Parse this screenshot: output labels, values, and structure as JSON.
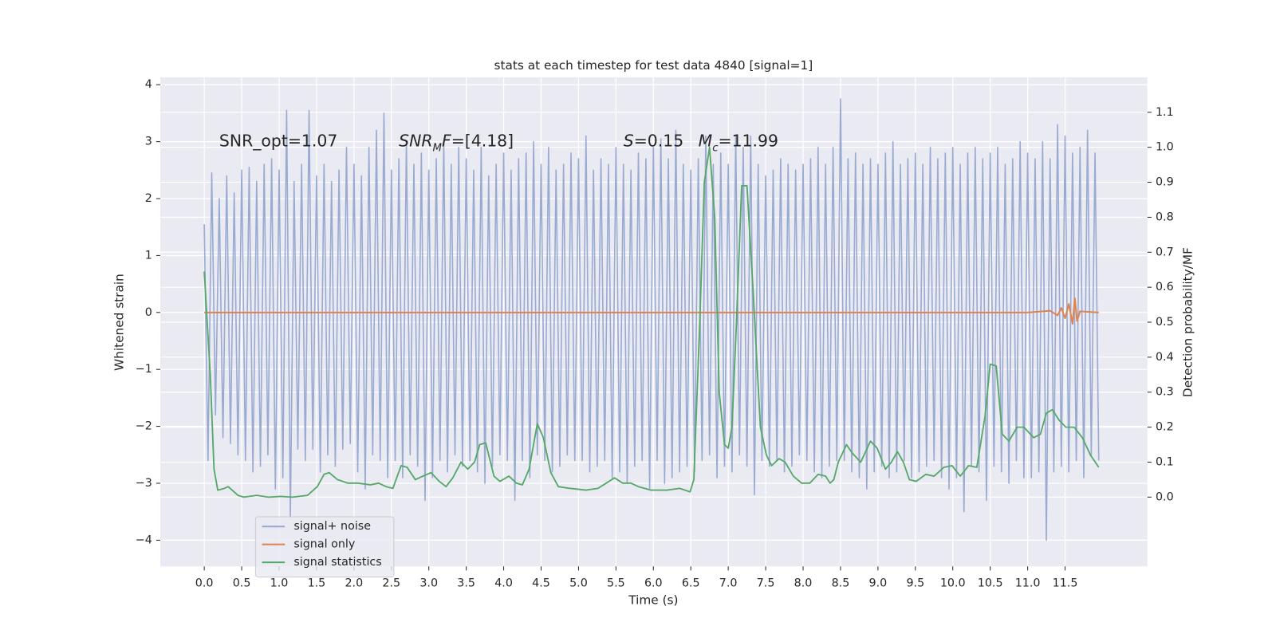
{
  "chart_data": {
    "type": "line",
    "title": "stats at each timestep for test data 4840 [signal=1]",
    "x_label": "Time (s)",
    "y_label": "Whitened strain",
    "y2_label": "Detection probability/MF",
    "grid": true,
    "legend": "lower left",
    "xlim": [
      -0.587,
      12.6
    ],
    "ylim": [
      -4.46,
      4.13
    ],
    "y2lim": [
      -0.198,
      1.2
    ],
    "xticks": [
      {
        "value": 0,
        "label": "0.0"
      },
      {
        "value": 0.5,
        "label": "0.5"
      },
      {
        "value": 1,
        "label": "1.0"
      },
      {
        "value": 1.5,
        "label": "1.5"
      },
      {
        "value": 2,
        "label": "2.0"
      },
      {
        "value": 2.5,
        "label": "2.5"
      },
      {
        "value": 3,
        "label": "3.0"
      },
      {
        "value": 3.5,
        "label": "3.5"
      },
      {
        "value": 4,
        "label": "4.0"
      },
      {
        "value": 4.5,
        "label": "4.5"
      },
      {
        "value": 5,
        "label": "5.0"
      },
      {
        "value": 5.5,
        "label": "5.5"
      },
      {
        "value": 6,
        "label": "6.0"
      },
      {
        "value": 6.5,
        "label": "6.5"
      },
      {
        "value": 7,
        "label": "7.0"
      },
      {
        "value": 7.5,
        "label": "7.5"
      },
      {
        "value": 8,
        "label": "8.0"
      },
      {
        "value": 8.5,
        "label": "8.5"
      },
      {
        "value": 9,
        "label": "9.0"
      },
      {
        "value": 9.5,
        "label": "9.5"
      },
      {
        "value": 10,
        "label": "10.0"
      },
      {
        "value": 10.5,
        "label": "10.5"
      },
      {
        "value": 11,
        "label": "11.0"
      },
      {
        "value": 11.5,
        "label": "11.5"
      }
    ],
    "yticks": [
      {
        "value": -4,
        "label": "−4"
      },
      {
        "value": -3,
        "label": "−3"
      },
      {
        "value": -2,
        "label": "−2"
      },
      {
        "value": -1,
        "label": "−1"
      },
      0,
      1,
      2,
      3,
      4
    ],
    "y2ticks": [
      {
        "value": 0,
        "label": "0.0"
      },
      {
        "value": 0.1,
        "label": "0.1"
      },
      {
        "value": 0.2,
        "label": "0.2"
      },
      {
        "value": 0.3,
        "label": "0.3"
      },
      {
        "value": 0.4,
        "label": "0.4"
      },
      {
        "value": 0.5,
        "label": "0.5"
      },
      {
        "value": 0.6,
        "label": "0.6"
      },
      {
        "value": 0.7,
        "label": "0.7"
      },
      {
        "value": 0.8,
        "label": "0.8"
      },
      {
        "value": 0.9,
        "label": "0.9"
      },
      {
        "value": 1.0,
        "label": "1.0"
      },
      {
        "value": 1.1,
        "label": "1.1"
      }
    ],
    "annotations": [
      {
        "parts": [
          {
            "text": "SNR_opt=1.07"
          }
        ]
      },
      {
        "parts": [
          {
            "text": "SNR",
            "italic": true
          },
          {
            "text": "M",
            "italic": true,
            "sub": true
          },
          {
            "text": "F",
            "italic": true
          },
          {
            "text": "=[4.18]"
          }
        ]
      },
      {
        "parts": [
          {
            "text": "S",
            "italic": true
          },
          {
            "text": "=0.15"
          }
        ]
      },
      {
        "parts": [
          {
            "text": "M",
            "italic": true
          },
          {
            "text": "c",
            "italic": true,
            "sub": true
          },
          {
            "text": "=11.99"
          }
        ]
      }
    ],
    "series": [
      {
        "name": "signal+ noise",
        "color": "#9aabd2",
        "width": 1.6,
        "x": [
          0,
          0.05,
          0.1,
          0.15,
          0.2,
          0.25,
          0.3,
          0.35,
          0.4,
          0.45,
          0.5,
          0.55,
          0.6,
          0.65,
          0.7,
          0.75,
          0.8,
          0.85,
          0.9,
          0.95,
          1,
          1.05,
          1.1,
          1.15,
          1.2,
          1.25,
          1.3,
          1.35,
          1.4,
          1.45,
          1.5,
          1.55,
          1.6,
          1.65,
          1.7,
          1.75,
          1.8,
          1.85,
          1.9,
          1.95,
          2,
          2.05,
          2.1,
          2.15,
          2.2,
          2.25,
          2.3,
          2.35,
          2.4,
          2.45,
          2.5,
          2.55,
          2.6,
          2.65,
          2.7,
          2.75,
          2.8,
          2.85,
          2.9,
          2.95,
          3,
          3.05,
          3.1,
          3.15,
          3.2,
          3.25,
          3.3,
          3.35,
          3.4,
          3.45,
          3.5,
          3.55,
          3.6,
          3.65,
          3.7,
          3.75,
          3.8,
          3.85,
          3.9,
          3.95,
          4,
          4.05,
          4.1,
          4.15,
          4.2,
          4.25,
          4.3,
          4.35,
          4.4,
          4.45,
          4.5,
          4.55,
          4.6,
          4.65,
          4.7,
          4.75,
          4.8,
          4.85,
          4.9,
          4.95,
          5,
          5.05,
          5.1,
          5.15,
          5.2,
          5.25,
          5.3,
          5.35,
          5.4,
          5.45,
          5.5,
          5.55,
          5.6,
          5.65,
          5.7,
          5.75,
          5.8,
          5.85,
          5.9,
          5.95,
          6,
          6.05,
          6.1,
          6.15,
          6.2,
          6.25,
          6.3,
          6.35,
          6.4,
          6.45,
          6.5,
          6.55,
          6.6,
          6.65,
          6.7,
          6.75,
          6.8,
          6.85,
          6.9,
          6.95,
          7,
          7.05,
          7.1,
          7.15,
          7.2,
          7.25,
          7.3,
          7.35,
          7.4,
          7.45,
          7.5,
          7.55,
          7.6,
          7.65,
          7.7,
          7.75,
          7.8,
          7.85,
          7.9,
          7.95,
          8,
          8.05,
          8.1,
          8.15,
          8.2,
          8.25,
          8.3,
          8.35,
          8.4,
          8.45,
          8.5,
          8.55,
          8.6,
          8.65,
          8.7,
          8.75,
          8.8,
          8.85,
          8.9,
          8.95,
          9,
          9.05,
          9.1,
          9.15,
          9.2,
          9.25,
          9.3,
          9.35,
          9.4,
          9.45,
          9.5,
          9.55,
          9.6,
          9.65,
          9.7,
          9.75,
          9.8,
          9.85,
          9.9,
          9.95,
          10,
          10.05,
          10.1,
          10.15,
          10.2,
          10.25,
          10.3,
          10.35,
          10.4,
          10.45,
          10.5,
          10.55,
          10.6,
          10.65,
          10.7,
          10.75,
          10.8,
          10.85,
          10.9,
          10.95,
          11,
          11.05,
          11.1,
          11.15,
          11.2,
          11.25,
          11.3,
          11.35,
          11.4,
          11.45,
          11.5,
          11.55,
          11.6,
          11.65,
          11.7,
          11.75,
          11.8,
          11.85,
          11.9,
          11.95
        ],
        "values": [
          1.55,
          -2.6,
          2.45,
          -1.8,
          2.0,
          -2.2,
          2.4,
          -2.3,
          2.1,
          -2.5,
          2.5,
          -2.6,
          2.55,
          -2.8,
          2.3,
          -2.7,
          2.6,
          -2.5,
          2.7,
          -3.1,
          2.5,
          -2.9,
          3.55,
          -3.6,
          2.3,
          -2.4,
          2.6,
          -2.6,
          3.55,
          -2.4,
          2.4,
          -2.8,
          2.6,
          -2.5,
          2.3,
          -2.7,
          2.5,
          -2.4,
          2.9,
          -2.3,
          2.6,
          -2.8,
          2.4,
          -3.1,
          2.9,
          -2.5,
          3.2,
          -2.6,
          3.5,
          -2.9,
          2.5,
          -2.6,
          2.7,
          -2.9,
          3.0,
          -2.5,
          2.6,
          -2.7,
          2.8,
          -3.3,
          2.5,
          -2.9,
          2.7,
          -2.6,
          3.0,
          -2.8,
          2.6,
          -2.5,
          2.9,
          -2.7,
          2.7,
          -2.6,
          2.5,
          -2.8,
          2.9,
          -3.0,
          2.4,
          -2.7,
          2.6,
          -2.5,
          2.8,
          -2.6,
          2.5,
          -3.3,
          2.7,
          -2.6,
          2.8,
          -2.9,
          3.0,
          -2.5,
          2.6,
          -2.6,
          2.9,
          -2.8,
          2.5,
          -2.7,
          2.6,
          -2.5,
          2.8,
          -2.6,
          2.7,
          -2.6,
          3.1,
          -2.8,
          2.5,
          -2.7,
          2.7,
          -2.6,
          2.6,
          -2.9,
          2.9,
          -2.8,
          2.6,
          -3.0,
          2.5,
          -2.7,
          2.8,
          -2.6,
          2.7,
          -3.1,
          2.9,
          -2.6,
          3.05,
          -3.0,
          2.7,
          -2.9,
          3.2,
          -2.8,
          2.6,
          -2.7,
          2.5,
          -2.8,
          2.7,
          -2.6,
          3.1,
          -2.5,
          2.6,
          -2.9,
          2.8,
          -2.7,
          2.6,
          -2.8,
          3.1,
          -2.5,
          2.9,
          -2.7,
          3.1,
          -3.2,
          2.6,
          -2.6,
          2.4,
          -2.7,
          2.5,
          -2.6,
          2.7,
          -2.8,
          2.6,
          -2.7,
          2.5,
          -2.5,
          2.6,
          -2.6,
          2.7,
          -2.8,
          2.9,
          -2.9,
          2.6,
          -2.7,
          2.9,
          -2.6,
          3.75,
          -2.6,
          2.7,
          -2.8,
          2.8,
          -2.9,
          2.6,
          -3.1,
          2.7,
          -2.8,
          2.6,
          -2.7,
          2.8,
          -2.9,
          3.0,
          -2.8,
          2.6,
          -2.6,
          2.7,
          -2.9,
          2.8,
          -2.8,
          2.6,
          -2.7,
          2.9,
          -2.6,
          2.7,
          -2.9,
          2.8,
          -3.1,
          2.9,
          -2.9,
          2.6,
          -3.5,
          2.8,
          -2.7,
          2.9,
          -2.8,
          2.7,
          -3.3,
          2.8,
          -2.7,
          2.9,
          -2.8,
          2.6,
          -3.0,
          2.7,
          -2.6,
          3.0,
          -2.9,
          2.8,
          -2.9,
          2.7,
          -2.8,
          3.0,
          -4.0,
          2.7,
          -2.8,
          3.3,
          -2.7,
          3.1,
          -2.8,
          2.8,
          -2.6,
          2.9,
          -2.9,
          3.2,
          -2.5,
          2.8,
          -2.6
        ]
      },
      {
        "name": "signal only",
        "color": "#dd8452",
        "width": 2,
        "x": [
          0,
          11.0,
          11.3,
          11.4,
          11.45,
          11.5,
          11.55,
          11.6,
          11.63,
          11.66,
          11.7,
          11.95
        ],
        "values": [
          0,
          0,
          0.03,
          -0.05,
          0.08,
          -0.1,
          0.15,
          -0.2,
          0.25,
          -0.15,
          0.02,
          0
        ]
      },
      {
        "name": "signal statistics",
        "color": "#55a868",
        "width": 1.8,
        "axis": "y2",
        "x": [
          0,
          0.08,
          0.13,
          0.18,
          0.27,
          0.32,
          0.45,
          0.53,
          0.7,
          0.86,
          1.02,
          1.18,
          1.38,
          1.51,
          1.6,
          1.67,
          1.78,
          1.92,
          2.05,
          2.22,
          2.33,
          2.43,
          2.52,
          2.63,
          2.71,
          2.82,
          2.92,
          3.03,
          3.14,
          3.23,
          3.32,
          3.43,
          3.52,
          3.61,
          3.68,
          3.76,
          3.87,
          3.95,
          4.07,
          4.17,
          4.25,
          4.34,
          4.45,
          4.53,
          4.63,
          4.73,
          4.88,
          5.1,
          5.26,
          5.37,
          5.48,
          5.59,
          5.7,
          5.8,
          5.97,
          6.18,
          6.35,
          6.49,
          6.54,
          6.62,
          6.68,
          6.75,
          6.82,
          6.88,
          6.95,
          7.0,
          7.05,
          7.11,
          7.18,
          7.25,
          7.33,
          7.43,
          7.51,
          7.58,
          7.68,
          7.76,
          7.87,
          7.98,
          8.09,
          8.2,
          8.3,
          8.36,
          8.41,
          8.47,
          8.58,
          8.66,
          8.77,
          8.9,
          8.99,
          9.1,
          9.18,
          9.26,
          9.34,
          9.42,
          9.51,
          9.64,
          9.75,
          9.88,
          9.99,
          10.1,
          10.21,
          10.32,
          10.43,
          10.5,
          10.58,
          10.66,
          10.75,
          10.86,
          10.95,
          11.08,
          11.17,
          11.25,
          11.33,
          11.42,
          11.51,
          11.62,
          11.73,
          11.84,
          11.95
        ],
        "values": [
          0.645,
          0.35,
          0.08,
          0.02,
          0.025,
          0.03,
          0.005,
          0,
          0.005,
          0,
          0.002,
          0,
          0.005,
          0.03,
          0.065,
          0.07,
          0.05,
          0.04,
          0.04,
          0.035,
          0.04,
          0.03,
          0.025,
          0.09,
          0.085,
          0.05,
          0.06,
          0.07,
          0.045,
          0.03,
          0.055,
          0.1,
          0.08,
          0.1,
          0.15,
          0.155,
          0.06,
          0.045,
          0.06,
          0.04,
          0.035,
          0.08,
          0.21,
          0.17,
          0.07,
          0.03,
          0.025,
          0.02,
          0.025,
          0.04,
          0.055,
          0.04,
          0.04,
          0.03,
          0.02,
          0.02,
          0.025,
          0.015,
          0.05,
          0.5,
          0.9,
          1.0,
          0.8,
          0.3,
          0.15,
          0.14,
          0.2,
          0.5,
          0.89,
          0.89,
          0.6,
          0.2,
          0.12,
          0.09,
          0.11,
          0.1,
          0.06,
          0.04,
          0.04,
          0.065,
          0.06,
          0.04,
          0.05,
          0.1,
          0.15,
          0.125,
          0.1,
          0.16,
          0.14,
          0.08,
          0.1,
          0.13,
          0.1,
          0.05,
          0.045,
          0.065,
          0.06,
          0.085,
          0.09,
          0.06,
          0.09,
          0.085,
          0.23,
          0.38,
          0.375,
          0.18,
          0.16,
          0.2,
          0.2,
          0.17,
          0.18,
          0.24,
          0.25,
          0.22,
          0.2,
          0.2,
          0.17,
          0.12,
          0.085
        ]
      }
    ]
  }
}
